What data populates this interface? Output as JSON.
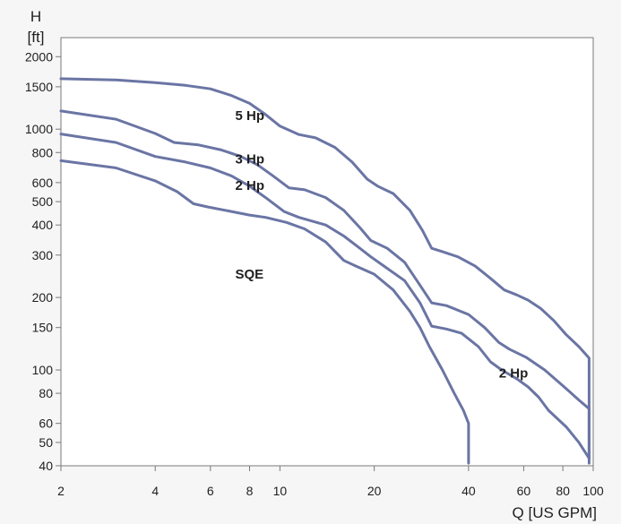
{
  "chart_data": {
    "type": "line",
    "title": "",
    "xlabel": "Q [US GPM]",
    "ylabel_top": "H",
    "ylabel_unit": "[ft]",
    "x_scale": "log",
    "y_scale": "log",
    "xlim": [
      2,
      100
    ],
    "ylim": [
      40,
      2400
    ],
    "grid": false,
    "x_ticks": [
      {
        "value": 2,
        "label": "2"
      },
      {
        "value": 4,
        "label": "4"
      },
      {
        "value": 6,
        "label": "6"
      },
      {
        "value": 8,
        "label": "8"
      },
      {
        "value": 10,
        "label": "10"
      },
      {
        "value": 20,
        "label": "20"
      },
      {
        "value": 40,
        "label": "40"
      },
      {
        "value": 60,
        "label": "60"
      },
      {
        "value": 80,
        "label": "80"
      },
      {
        "value": 100,
        "label": "100"
      }
    ],
    "y_ticks": [
      {
        "value": 40,
        "label": "40"
      },
      {
        "value": 50,
        "label": "50"
      },
      {
        "value": 60,
        "label": "60"
      },
      {
        "value": 80,
        "label": "80"
      },
      {
        "value": 100,
        "label": "100"
      },
      {
        "value": 150,
        "label": "150"
      },
      {
        "value": 200,
        "label": "200"
      },
      {
        "value": 300,
        "label": "300"
      },
      {
        "value": 400,
        "label": "400"
      },
      {
        "value": 500,
        "label": "500"
      },
      {
        "value": 600,
        "label": "600"
      },
      {
        "value": 800,
        "label": "800"
      },
      {
        "value": 1000,
        "label": "1000"
      },
      {
        "value": 1500,
        "label": "1500"
      },
      {
        "value": 2000,
        "label": "2000"
      }
    ],
    "series": [
      {
        "points": [
          [
            2,
            1620
          ],
          [
            3,
            1600
          ],
          [
            4,
            1560
          ],
          [
            5,
            1520
          ],
          [
            6,
            1470
          ],
          [
            7,
            1380
          ],
          [
            8,
            1280
          ],
          [
            9,
            1150
          ],
          [
            10,
            1030
          ],
          [
            11.5,
            950
          ],
          [
            13,
            920
          ],
          [
            15,
            840
          ],
          [
            17,
            730
          ],
          [
            19,
            620
          ],
          [
            20.5,
            580
          ],
          [
            23,
            540
          ],
          [
            26,
            460
          ],
          [
            28.5,
            380
          ],
          [
            30.5,
            320
          ],
          [
            33,
            310
          ],
          [
            37,
            295
          ],
          [
            42,
            270
          ],
          [
            47,
            240
          ],
          [
            52,
            215
          ],
          [
            57,
            205
          ],
          [
            62,
            195
          ],
          [
            68,
            180
          ],
          [
            75,
            160
          ],
          [
            82,
            140
          ],
          [
            90,
            125
          ],
          [
            97,
            112
          ],
          [
            97,
            43
          ]
        ]
      },
      {
        "points": [
          [
            2,
            1190
          ],
          [
            3,
            1100
          ],
          [
            4,
            960
          ],
          [
            4.6,
            880
          ],
          [
            5.5,
            860
          ],
          [
            6.5,
            820
          ],
          [
            7.5,
            770
          ],
          [
            8.5,
            710
          ],
          [
            9.5,
            640
          ],
          [
            10.7,
            570
          ],
          [
            12,
            560
          ],
          [
            14,
            520
          ],
          [
            16,
            460
          ],
          [
            18,
            390
          ],
          [
            19.5,
            345
          ],
          [
            22,
            320
          ],
          [
            25,
            280
          ],
          [
            28,
            225
          ],
          [
            30.5,
            190
          ],
          [
            34,
            185
          ],
          [
            40,
            170
          ],
          [
            45,
            150
          ],
          [
            50,
            130
          ],
          [
            54,
            122
          ],
          [
            61,
            113
          ],
          [
            70,
            100
          ],
          [
            80,
            86
          ],
          [
            90,
            75
          ],
          [
            97,
            69
          ],
          [
            97,
            41
          ]
        ]
      },
      {
        "points": [
          [
            2,
            955
          ],
          [
            3,
            880
          ],
          [
            4,
            770
          ],
          [
            5,
            730
          ],
          [
            6,
            690
          ],
          [
            7,
            640
          ],
          [
            8,
            580
          ],
          [
            9,
            520
          ],
          [
            10.3,
            455
          ],
          [
            11.5,
            430
          ],
          [
            14,
            400
          ],
          [
            16,
            360
          ],
          [
            18,
            320
          ],
          [
            19.5,
            295
          ],
          [
            21.5,
            270
          ],
          [
            25,
            235
          ],
          [
            28,
            190
          ],
          [
            30.5,
            152
          ],
          [
            34,
            148
          ],
          [
            38,
            142
          ],
          [
            43,
            125
          ],
          [
            47,
            108
          ],
          [
            51,
            100
          ],
          [
            57,
            92
          ],
          [
            62,
            85
          ],
          [
            67,
            77
          ],
          [
            72,
            68
          ],
          [
            82,
            58
          ],
          [
            90,
            50
          ],
          [
            97,
            43
          ]
        ]
      },
      {
        "points": [
          [
            2,
            740
          ],
          [
            3,
            690
          ],
          [
            4,
            610
          ],
          [
            4.7,
            550
          ],
          [
            5.3,
            490
          ],
          [
            5.9,
            475
          ],
          [
            7,
            455
          ],
          [
            8,
            440
          ],
          [
            9,
            430
          ],
          [
            10.5,
            410
          ],
          [
            12,
            385
          ],
          [
            14,
            340
          ],
          [
            16,
            285
          ],
          [
            17.5,
            270
          ],
          [
            20,
            250
          ],
          [
            23,
            215
          ],
          [
            26,
            175
          ],
          [
            28,
            150
          ],
          [
            30,
            125
          ],
          [
            33,
            100
          ],
          [
            36,
            80
          ],
          [
            38.5,
            68
          ],
          [
            40,
            60
          ],
          [
            40,
            41
          ]
        ]
      }
    ],
    "annotations": [
      {
        "text": "5 Hp",
        "x": 7.2,
        "y": 1090
      },
      {
        "text": "3 Hp",
        "x": 7.2,
        "y": 720
      },
      {
        "text": "2 Hp",
        "x": 7.2,
        "y": 560
      },
      {
        "text": "SQE",
        "x": 7.2,
        "y": 240
      },
      {
        "text": "2 Hp",
        "x": 50,
        "y": 93
      }
    ]
  }
}
